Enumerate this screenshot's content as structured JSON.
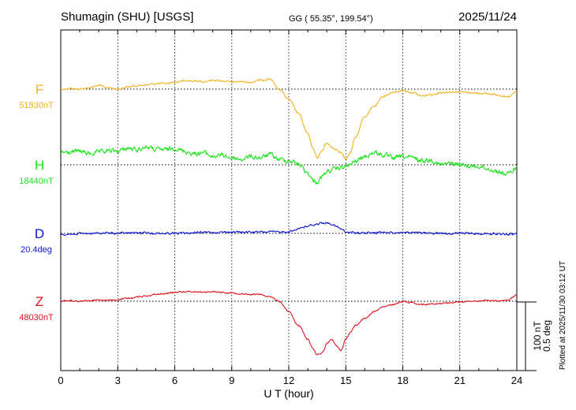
{
  "header": {
    "station": "Shumagin (SHU)  [USGS]",
    "coords": "GG ( 55.35°, 199.54°)",
    "date": "2025/11/24"
  },
  "plotted_note": "Plotted at 2025/11/30 03:12 UT",
  "scale_bar": {
    "line1": "100 nT",
    "line2": "0.5 deg"
  },
  "colors": {
    "F": "#f2b21c",
    "H": "#18e418",
    "D": "#0a14d2",
    "Z": "#e0141e"
  },
  "chart_data": {
    "type": "line",
    "xlabel": "U T (hour)",
    "xlim": [
      0,
      24
    ],
    "xticks": [
      0,
      3,
      6,
      9,
      12,
      15,
      18,
      21,
      24
    ],
    "series": [
      {
        "key": "F",
        "name": "F",
        "baseline_label": "51830nT",
        "unit": "nT",
        "baseline": 51830,
        "x": [
          0,
          0.5,
          1,
          1.5,
          2,
          2.5,
          3,
          3.5,
          4,
          4.5,
          5,
          5.5,
          6,
          6.5,
          7,
          7.5,
          8,
          8.5,
          9,
          9.5,
          10,
          10.5,
          11,
          11.5,
          12,
          12.5,
          13,
          13.25,
          13.5,
          13.75,
          14,
          14.25,
          14.5,
          14.75,
          15,
          15.25,
          15.5,
          16,
          16.5,
          17,
          17.5,
          18,
          18.5,
          19,
          19.5,
          20,
          20.5,
          21,
          21.5,
          22,
          22.5,
          23,
          23.5,
          24
        ],
        "values": [
          51830,
          51831,
          51830,
          51832,
          51835,
          51832,
          51830,
          51833,
          51835,
          51836,
          51838,
          51838,
          51840,
          51842,
          51842,
          51841,
          51843,
          51842,
          51840,
          51841,
          51840,
          51843,
          51845,
          51830,
          51815,
          51795,
          51765,
          51745,
          51730,
          51740,
          51752,
          51745,
          51742,
          51738,
          51727,
          51738,
          51760,
          51790,
          51805,
          51820,
          51825,
          51828,
          51825,
          51820,
          51822,
          51825,
          51826,
          51826,
          51825,
          51824,
          51823,
          51822,
          51818,
          51826
        ]
      },
      {
        "key": "H",
        "name": "H",
        "baseline_label": "18440nT",
        "unit": "nT",
        "baseline": 18440,
        "x": [
          0,
          0.5,
          1,
          1.5,
          2,
          2.5,
          3,
          3.5,
          4,
          4.5,
          5,
          5.5,
          6,
          6.5,
          7,
          7.5,
          8,
          8.5,
          9,
          9.5,
          10,
          10.5,
          11,
          11.5,
          12,
          12.5,
          13,
          13.25,
          13.5,
          13.75,
          14,
          14.25,
          14.5,
          14.75,
          15,
          15.25,
          15.5,
          16,
          16.5,
          17,
          17.5,
          18,
          18.5,
          19,
          19.5,
          20,
          20.5,
          21,
          21.5,
          22,
          22.5,
          23,
          23.5,
          24
        ],
        "values": [
          18458,
          18458,
          18460,
          18456,
          18458,
          18460,
          18460,
          18464,
          18462,
          18466,
          18462,
          18462,
          18464,
          18460,
          18456,
          18458,
          18452,
          18454,
          18450,
          18448,
          18452,
          18450,
          18455,
          18448,
          18446,
          18442,
          18428,
          18418,
          18415,
          18422,
          18430,
          18432,
          18434,
          18436,
          18438,
          18440,
          18445,
          18452,
          18458,
          18454,
          18450,
          18452,
          18450,
          18446,
          18447,
          18440,
          18442,
          18440,
          18438,
          18438,
          18434,
          18430,
          18426,
          18436
        ]
      },
      {
        "key": "D",
        "name": "D",
        "baseline_label": "20.4deg",
        "unit": "deg",
        "baseline": 20.4,
        "x": [
          0,
          0.5,
          1,
          1.5,
          2,
          2.5,
          3,
          3.5,
          4,
          4.5,
          5,
          5.5,
          6,
          6.5,
          7,
          7.5,
          8,
          8.5,
          9,
          9.5,
          10,
          10.5,
          11,
          11.5,
          12,
          12.25,
          12.5,
          12.75,
          13,
          13.25,
          13.5,
          13.75,
          14,
          14.25,
          14.5,
          14.75,
          15,
          15.5,
          16,
          16.5,
          17,
          17.5,
          18,
          18.5,
          19,
          19.5,
          20,
          20.5,
          21,
          21.5,
          22,
          22.5,
          23,
          23.5,
          24
        ],
        "values": [
          20.395,
          20.394,
          20.398,
          20.399,
          20.401,
          20.402,
          20.4,
          20.402,
          20.404,
          20.402,
          20.401,
          20.4,
          20.402,
          20.401,
          20.404,
          20.406,
          20.408,
          20.409,
          20.41,
          20.409,
          20.41,
          20.409,
          20.411,
          20.41,
          20.413,
          20.42,
          20.438,
          20.445,
          20.452,
          20.462,
          20.468,
          20.478,
          20.476,
          20.468,
          20.45,
          20.432,
          20.408,
          20.405,
          20.403,
          20.404,
          20.407,
          20.406,
          20.408,
          20.404,
          20.402,
          20.401,
          20.402,
          20.4,
          20.401,
          20.4,
          20.398,
          20.4,
          20.395,
          20.393,
          20.396
        ]
      },
      {
        "key": "Z",
        "name": "Z",
        "baseline_label": "48030nT",
        "unit": "nT",
        "baseline": 48030,
        "x": [
          0,
          0.5,
          1,
          1.5,
          2,
          2.5,
          3,
          3.5,
          4,
          4.5,
          5,
          5.5,
          6,
          6.5,
          7,
          7.5,
          8,
          8.5,
          9,
          9.5,
          10,
          10.5,
          11,
          11.5,
          12,
          12.5,
          13,
          13.25,
          13.5,
          13.75,
          14,
          14.25,
          14.5,
          14.75,
          15,
          15.25,
          15.5,
          16,
          16.5,
          17,
          17.5,
          18,
          18.5,
          19,
          19.5,
          20,
          20.5,
          21,
          21.5,
          22,
          22.5,
          23,
          23.5,
          24
        ],
        "values": [
          48030,
          48031,
          48030,
          48031,
          48032,
          48031,
          48032,
          48034,
          48036,
          48038,
          48040,
          48041,
          48043,
          48044,
          48044,
          48043,
          48044,
          48043,
          48042,
          48041,
          48040,
          48040,
          48036,
          48030,
          48015,
          47995,
          47975,
          47962,
          47952,
          47955,
          47968,
          47975,
          47965,
          47958,
          47975,
          47985,
          47995,
          48005,
          48015,
          48022,
          48025,
          48030,
          48028,
          48025,
          48026,
          48027,
          48028,
          48029,
          48030,
          48030,
          48031,
          48030,
          48031,
          48039
        ]
      }
    ]
  }
}
